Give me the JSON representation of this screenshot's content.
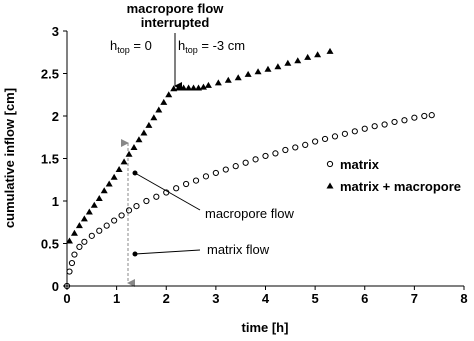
{
  "chart_data": {
    "type": "scatter",
    "xlabel": "time [h]",
    "ylabel": "cumulative inflow [cm]",
    "xlim": [
      0,
      8
    ],
    "ylim": [
      0,
      3
    ],
    "xticks": [
      0,
      1,
      2,
      3,
      4,
      5,
      6,
      7,
      8
    ],
    "yticks": [
      0,
      0.5,
      1,
      1.5,
      2,
      2.5,
      3
    ],
    "series": [
      {
        "name": "matrix",
        "marker": "circle",
        "color": "#000000",
        "x": [
          0,
          0.05,
          0.1,
          0.15,
          0.25,
          0.35,
          0.5,
          0.65,
          0.8,
          0.95,
          1.1,
          1.25,
          1.4,
          1.6,
          1.8,
          2.0,
          2.2,
          2.4,
          2.6,
          2.8,
          3.0,
          3.2,
          3.4,
          3.6,
          3.8,
          4.0,
          4.2,
          4.4,
          4.6,
          4.8,
          5.0,
          5.2,
          5.4,
          5.6,
          5.8,
          6.0,
          6.2,
          6.4,
          6.6,
          6.8,
          7.0,
          7.2,
          7.35
        ],
        "values": [
          0,
          0.17,
          0.27,
          0.37,
          0.46,
          0.52,
          0.59,
          0.65,
          0.71,
          0.77,
          0.83,
          0.89,
          0.94,
          1.0,
          1.05,
          1.1,
          1.15,
          1.2,
          1.24,
          1.29,
          1.33,
          1.37,
          1.41,
          1.45,
          1.49,
          1.53,
          1.56,
          1.6,
          1.63,
          1.66,
          1.7,
          1.73,
          1.76,
          1.79,
          1.82,
          1.85,
          1.88,
          1.9,
          1.93,
          1.95,
          1.98,
          2.0,
          2.01
        ]
      },
      {
        "name": "matrix + macropore",
        "marker": "triangle",
        "color": "#000000",
        "x": [
          0.05,
          0.15,
          0.25,
          0.35,
          0.45,
          0.55,
          0.65,
          0.75,
          0.85,
          0.95,
          1.05,
          1.15,
          1.25,
          1.35,
          1.45,
          1.55,
          1.65,
          1.75,
          1.85,
          1.95,
          2.05,
          2.15,
          2.25,
          2.35,
          2.45,
          2.55,
          2.65,
          2.75,
          2.85,
          3.05,
          3.25,
          3.45,
          3.65,
          3.85,
          4.05,
          4.25,
          4.45,
          4.65,
          4.85,
          5.05,
          5.3
        ],
        "values": [
          0.53,
          0.62,
          0.71,
          0.79,
          0.87,
          0.95,
          1.03,
          1.12,
          1.2,
          1.28,
          1.37,
          1.46,
          1.55,
          1.63,
          1.72,
          1.8,
          1.89,
          1.98,
          2.07,
          2.16,
          2.25,
          2.32,
          2.33,
          2.33,
          2.33,
          2.33,
          2.33,
          2.34,
          2.36,
          2.39,
          2.42,
          2.45,
          2.49,
          2.52,
          2.55,
          2.58,
          2.62,
          2.65,
          2.69,
          2.72,
          2.76
        ]
      }
    ],
    "annotations": {
      "interrupted": [
        "macropore flow",
        "interrupted"
      ],
      "h_left": {
        "h": "h",
        "sub": "top",
        "rest": " = 0"
      },
      "h_right": {
        "h": "h",
        "sub": "top",
        "rest": " = -3 cm"
      },
      "macropore_flow": "macropore flow",
      "matrix_flow": "matrix flow"
    }
  }
}
